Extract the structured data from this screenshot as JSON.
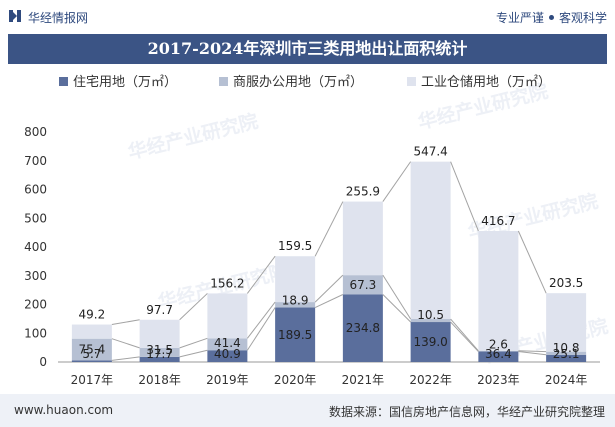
{
  "header": {
    "brand": "华经情报网",
    "tagline_left": "专业严谨",
    "tagline_right": "客观科学"
  },
  "footer": {
    "site": "www.huaon.com",
    "source": "数据来源：国信房地产信息网，华经产业研究院整理"
  },
  "chart_data": {
    "type": "bar",
    "stacked": true,
    "title": "2017-2024年深圳市三类用地出让面积统计",
    "categories": [
      "2017年",
      "2018年",
      "2019年",
      "2020年",
      "2021年",
      "2022年",
      "2023年",
      "2024年"
    ],
    "series": [
      {
        "name": "住宅用地（万㎡）",
        "color": "#5a6e9c",
        "values": [
          5.7,
          17.7,
          40.9,
          189.5,
          234.8,
          139.0,
          36.4,
          25.1
        ]
      },
      {
        "name": "商服办公用地（万㎡）",
        "color": "#b6c0d3",
        "values": [
          75.4,
          31.5,
          41.4,
          18.9,
          67.3,
          10.5,
          2.6,
          10.8
        ]
      },
      {
        "name": "工业仓储用地（万㎡）",
        "color": "#dfe3ee",
        "values": [
          49.2,
          97.7,
          156.2,
          159.5,
          255.9,
          547.4,
          416.7,
          203.5
        ]
      }
    ],
    "ylim": [
      0,
      800
    ],
    "yticks": [
      0,
      100,
      200,
      300,
      400,
      500,
      600,
      700,
      800
    ],
    "legend_position": "top",
    "watermark": "华经产业研究院"
  }
}
